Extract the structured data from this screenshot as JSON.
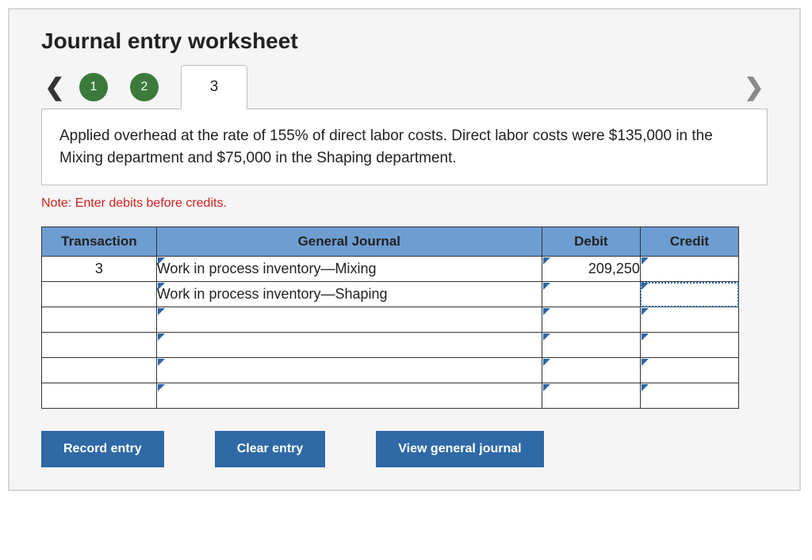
{
  "title": "Journal entry worksheet",
  "nav": {
    "steps": [
      {
        "label": "1",
        "state": "done"
      },
      {
        "label": "2",
        "state": "done"
      },
      {
        "label": "3",
        "state": "active"
      }
    ]
  },
  "prompt": "Applied overhead at the rate of 155% of direct labor costs. Direct labor costs were $135,000 in the Mixing department and $75,000 in the Shaping department.",
  "note": "Note: Enter debits before credits.",
  "table": {
    "headers": {
      "transaction": "Transaction",
      "journal": "General Journal",
      "debit": "Debit",
      "credit": "Credit"
    },
    "rows": [
      {
        "transaction": "3",
        "journal": "Work in process inventory—Mixing",
        "debit": "209,250",
        "credit": ""
      },
      {
        "transaction": "",
        "journal": "Work in process inventory—Shaping",
        "debit": "",
        "credit": ""
      },
      {
        "transaction": "",
        "journal": "",
        "debit": "",
        "credit": ""
      },
      {
        "transaction": "",
        "journal": "",
        "debit": "",
        "credit": ""
      },
      {
        "transaction": "",
        "journal": "",
        "debit": "",
        "credit": ""
      },
      {
        "transaction": "",
        "journal": "",
        "debit": "",
        "credit": ""
      }
    ],
    "selected": {
      "row": 1,
      "col": "credit"
    }
  },
  "buttons": {
    "record": "Record entry",
    "clear": "Clear entry",
    "view": "View general journal"
  },
  "colors": {
    "header_bg": "#6d9dd1",
    "step_done_bg": "#3b7a3b",
    "button_bg": "#2f69a6",
    "note_color": "#d02020",
    "triangle_color": "#2a66a5"
  }
}
